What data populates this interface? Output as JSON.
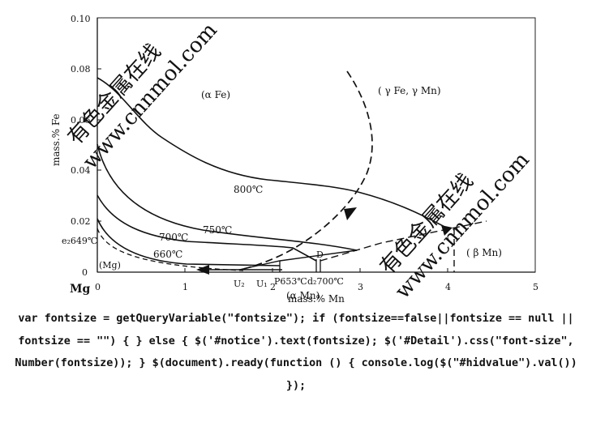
{
  "chart": {
    "xlabel": "mass.% Mn",
    "ylabel": "mass.% Fe",
    "x_axis_name": "Mg",
    "xlim": [
      0,
      5
    ],
    "ylim": [
      0,
      0.1
    ],
    "x_ticks": [
      "0",
      "1",
      "2",
      "3",
      "4",
      "5"
    ],
    "y_ticks": [
      "0",
      "0.02",
      "0.04",
      "0.06",
      "0.08",
      "0.10"
    ]
  },
  "regions": {
    "alpha_fe": "(α Fe)",
    "gamma": "( γ Fe, γ Mn)",
    "beta_mn": "( β Mn)",
    "alpha_mn": "(α Mn)",
    "mg": "(Mg)"
  },
  "isotherms": {
    "t800": "800℃",
    "t750": "750℃",
    "t700": "700℃",
    "t660": "660℃"
  },
  "points": {
    "e2": "e₂649℃",
    "u2": "U₂",
    "u1": "U₁",
    "p": "P653℃",
    "d2": "d₂700℃",
    "d": "D"
  },
  "watermark": {
    "line1": "有色金属在线",
    "line2": "www.cnnmol.com"
  },
  "code_snippet": "var fontsize = getQueryVariable(\"fontsize\"); if (fontsize==false||fontsize == null || fontsize == \"\") { } else { $('#notice').text(fontsize); $('#Detail').css(\"font-size\", Number(fontsize)); } $(document).ready(function () { console.log($(\"#hidvalue\").val()) });"
}
